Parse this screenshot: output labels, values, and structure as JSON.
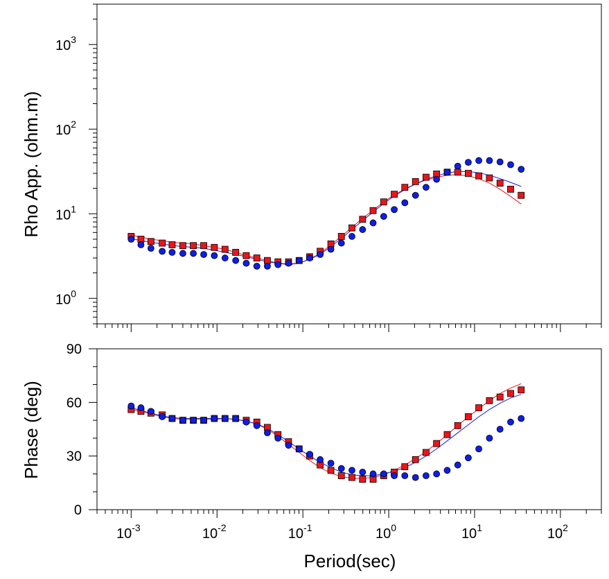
{
  "chart_data": [
    {
      "type": "scatter",
      "panel": "apparent-resistivity",
      "ylabel": "Rho App. (ohm.m)",
      "xlabel": "",
      "xscale": "log",
      "yscale": "log",
      "xlim": [
        0.0004,
        300
      ],
      "ylim": [
        0.5,
        3000
      ],
      "x_ticks": [
        {
          "base": "10",
          "exp": "-3",
          "value": 0.001
        },
        {
          "base": "10",
          "exp": "-2",
          "value": 0.01
        },
        {
          "base": "10",
          "exp": "-1",
          "value": 0.1
        },
        {
          "base": "10",
          "exp": "0",
          "value": 1
        },
        {
          "base": "10",
          "exp": "1",
          "value": 10
        },
        {
          "base": "10",
          "exp": "2",
          "value": 100
        }
      ],
      "y_ticks": [
        {
          "base": "10",
          "exp": "0",
          "value": 1
        },
        {
          "base": "10",
          "exp": "1",
          "value": 10
        },
        {
          "base": "10",
          "exp": "2",
          "value": 100
        },
        {
          "base": "10",
          "exp": "3",
          "value": 1000
        }
      ],
      "x": [
        0.001,
        0.0013,
        0.0017,
        0.0023,
        0.003,
        0.004,
        0.0053,
        0.007,
        0.0093,
        0.0124,
        0.0165,
        0.0219,
        0.0291,
        0.0386,
        0.0513,
        0.0681,
        0.0905,
        0.12,
        0.159,
        0.212,
        0.281,
        0.373,
        0.496,
        0.658,
        0.874,
        1.16,
        1.54,
        2.05,
        2.72,
        3.61,
        4.8,
        6.37,
        8.45,
        11.2,
        14.9,
        19.8,
        26.3,
        34.9
      ],
      "series": [
        {
          "marker": "square",
          "color": "#e8161b",
          "y": [
            5.4,
            5.0,
            4.7,
            4.5,
            4.3,
            4.2,
            4.2,
            4.2,
            4.0,
            3.8,
            3.5,
            3.2,
            3.0,
            2.8,
            2.7,
            2.7,
            2.8,
            3.1,
            3.6,
            4.4,
            5.4,
            6.8,
            8.6,
            10.9,
            13.8,
            17.0,
            20.5,
            24.0,
            27.0,
            29.5,
            31.0,
            31.0,
            30.0,
            28.0,
            26.5,
            23.0,
            19.5,
            16.5
          ]
        },
        {
          "marker": "circle",
          "color": "#0e1ee8",
          "y": [
            5.0,
            4.3,
            3.9,
            3.6,
            3.5,
            3.4,
            3.4,
            3.3,
            3.2,
            3.0,
            2.8,
            2.6,
            2.4,
            2.4,
            2.5,
            2.6,
            2.8,
            3.0,
            3.3,
            3.8,
            4.5,
            5.4,
            6.5,
            7.8,
            9.3,
            11.2,
            13.5,
            16.5,
            20.5,
            25.5,
            31.0,
            36.5,
            40.5,
            42.5,
            42.5,
            41.0,
            38.0,
            33.5
          ]
        }
      ],
      "model_curves": [
        {
          "color": "#e8161b",
          "y": [
            5.6,
            5.3,
            5.0,
            4.8,
            4.6,
            4.5,
            4.4,
            4.2,
            4.0,
            3.8,
            3.5,
            3.2,
            3.0,
            2.8,
            2.6,
            2.5,
            2.6,
            2.9,
            3.4,
            4.3,
            5.4,
            6.9,
            8.8,
            11.0,
            13.8,
            16.7,
            19.6,
            22.5,
            25.0,
            27.0,
            28.5,
            29.0,
            28.0,
            26.0,
            23.0,
            19.5,
            16.0,
            13.0
          ]
        },
        {
          "color": "#0e1ee8",
          "y": [
            5.1,
            4.8,
            4.6,
            4.4,
            4.2,
            4.1,
            4.0,
            3.9,
            3.7,
            3.5,
            3.3,
            3.1,
            2.9,
            2.7,
            2.6,
            2.55,
            2.6,
            2.9,
            3.3,
            4.1,
            5.1,
            6.5,
            8.3,
            10.5,
            13.2,
            16.2,
            19.3,
            22.5,
            25.5,
            28.0,
            30.5,
            31.5,
            31.5,
            30.5,
            28.5,
            26.0,
            23.5,
            21.0
          ]
        }
      ]
    },
    {
      "type": "scatter",
      "panel": "phase",
      "ylabel": "Phase (deg)",
      "xlabel": "Period(sec)",
      "xscale": "log",
      "yscale": "linear",
      "xlim": [
        0.0004,
        300
      ],
      "ylim": [
        0,
        90
      ],
      "x_ticks": [
        {
          "base": "10",
          "exp": "-3",
          "value": 0.001
        },
        {
          "base": "10",
          "exp": "-2",
          "value": 0.01
        },
        {
          "base": "10",
          "exp": "-1",
          "value": 0.1
        },
        {
          "base": "10",
          "exp": "0",
          "value": 1
        },
        {
          "base": "10",
          "exp": "1",
          "value": 10
        },
        {
          "base": "10",
          "exp": "2",
          "value": 100
        }
      ],
      "y_ticks": [
        {
          "label": "0",
          "value": 0
        },
        {
          "label": "30",
          "value": 30
        },
        {
          "label": "60",
          "value": 60
        },
        {
          "label": "90",
          "value": 90
        }
      ],
      "x": [
        0.001,
        0.0013,
        0.0017,
        0.0023,
        0.003,
        0.004,
        0.0053,
        0.007,
        0.0093,
        0.0124,
        0.0165,
        0.0219,
        0.0291,
        0.0386,
        0.0513,
        0.0681,
        0.0905,
        0.12,
        0.159,
        0.212,
        0.281,
        0.373,
        0.496,
        0.658,
        0.874,
        1.16,
        1.54,
        2.05,
        2.72,
        3.61,
        4.8,
        6.37,
        8.45,
        11.2,
        14.9,
        19.8,
        26.3,
        34.9
      ],
      "series": [
        {
          "marker": "square",
          "color": "#e8161b",
          "y": [
            56,
            55,
            54,
            53,
            51,
            50,
            50,
            50,
            51,
            51,
            51,
            50,
            49,
            46,
            42,
            38,
            34,
            30,
            25,
            22,
            19,
            18,
            17,
            17,
            19,
            21,
            24,
            28,
            32,
            37,
            42,
            47,
            52,
            57,
            61,
            63,
            65,
            67
          ]
        },
        {
          "marker": "circle",
          "color": "#0e1ee8",
          "y": [
            58,
            57,
            55,
            52,
            51,
            50,
            50,
            50,
            51,
            51,
            51,
            49,
            47,
            43,
            40,
            36,
            34,
            31,
            28,
            26,
            23,
            22,
            21,
            20,
            20,
            19,
            19,
            18,
            19,
            20,
            22,
            25,
            29,
            34,
            40,
            45,
            49,
            51
          ]
        }
      ],
      "model_curves": [
        {
          "color": "#e8161b",
          "y": [
            56,
            55,
            53.5,
            52,
            51,
            50.5,
            50.5,
            50.5,
            50.5,
            51,
            50.5,
            49.5,
            48,
            45,
            41,
            36.5,
            32,
            27.5,
            23.5,
            20.5,
            18.5,
            17.5,
            17.5,
            18,
            19.5,
            22,
            25,
            28.5,
            32.5,
            37,
            42,
            47,
            52,
            56.5,
            61,
            65,
            68,
            70.5
          ]
        },
        {
          "color": "#0e1ee8",
          "y": [
            57,
            55.5,
            54,
            52.5,
            51.5,
            51,
            51,
            51,
            51,
            51,
            50.5,
            49.5,
            48,
            45.5,
            42,
            38,
            34,
            30,
            26.5,
            23.5,
            21,
            19.5,
            19,
            19,
            20,
            21.5,
            23.5,
            26.5,
            30,
            34,
            38.5,
            43,
            47.5,
            52,
            56,
            59.5,
            62.5,
            64.5
          ]
        }
      ]
    }
  ]
}
